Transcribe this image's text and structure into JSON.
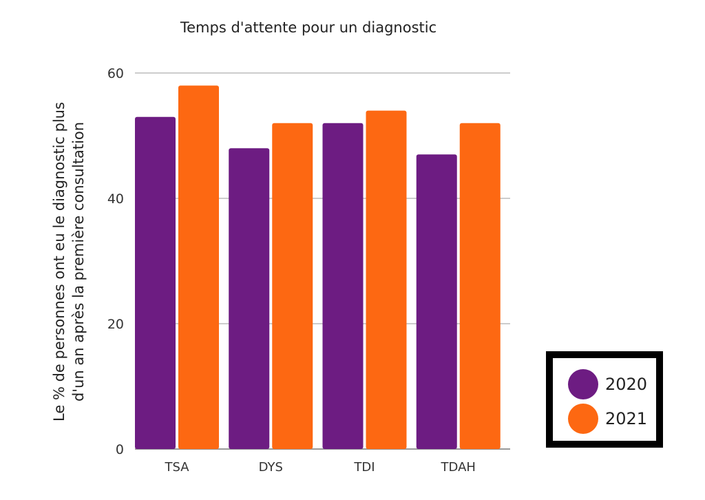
{
  "chart_data": {
    "type": "bar",
    "title": "Temps d'attente pour un diagnostic",
    "ylabel_lines": [
      "Le % de personnes ont eu le diagnostic plus",
      "d'un an après la première consultation"
    ],
    "xlabel": "",
    "categories": [
      "TSA",
      "DYS",
      "TDI",
      "TDAH"
    ],
    "series": [
      {
        "name": "2020",
        "color": "#6d1c82",
        "values": [
          53,
          48,
          52,
          47
        ]
      },
      {
        "name": "2021",
        "color": "#fd6812",
        "values": [
          58,
          52,
          54,
          52
        ]
      }
    ],
    "ylim": [
      0,
      60
    ],
    "yticks": [
      0,
      20,
      40,
      60
    ],
    "grid": true,
    "legend_position": "bottom-right"
  }
}
